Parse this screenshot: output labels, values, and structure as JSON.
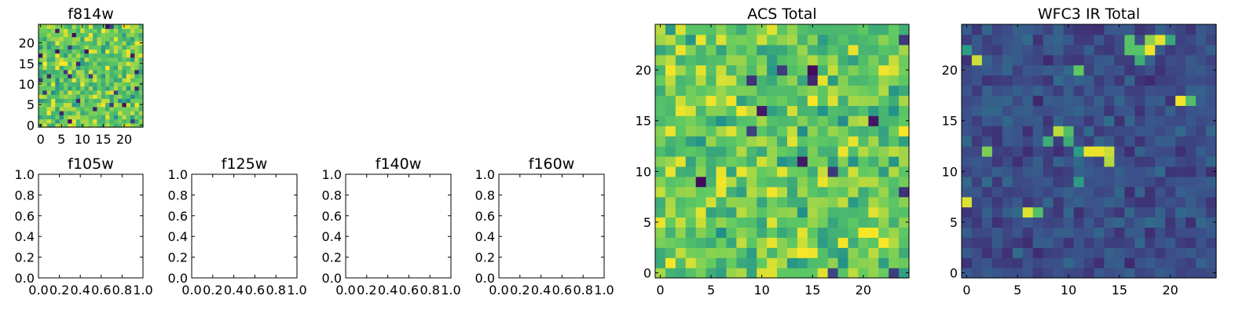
{
  "figure": {
    "background": "#ffffff",
    "colormap": "viridis",
    "colormap_stops": [
      "#440154",
      "#3b528b",
      "#21918c",
      "#5ec962",
      "#fde725"
    ]
  },
  "chart_data": [
    {
      "id": "f814w",
      "type": "heatmap",
      "title": "f814w",
      "xlabel": "",
      "ylabel": "",
      "grid_size": 25,
      "xlim": [
        -0.5,
        24.5
      ],
      "ylim": [
        -0.5,
        24.5
      ],
      "xticks": [
        0,
        5,
        10,
        15,
        20
      ],
      "yticks": [
        0,
        5,
        10,
        15,
        20
      ],
      "value_range": [
        0,
        1
      ],
      "grid": false,
      "values_note": "random noise field, mostly green-yellow with scattered dark pixels",
      "seed": 814,
      "mean_level": 0.75,
      "spread": 0.18,
      "outlier_rate": 0.06
    },
    {
      "id": "f105w",
      "type": "empty",
      "title": "f105w",
      "xlabel": "",
      "ylabel": "",
      "xlim": [
        0,
        1
      ],
      "ylim": [
        0,
        1
      ],
      "xticks": [
        "0.0",
        "0.2",
        "0.4",
        "0.6",
        "0.8",
        "1.0"
      ],
      "yticks": [
        "0.0",
        "0.2",
        "0.4",
        "0.6",
        "0.8",
        "1.0"
      ],
      "grid": false
    },
    {
      "id": "f125w",
      "type": "empty",
      "title": "f125w",
      "xlabel": "",
      "ylabel": "",
      "xlim": [
        0,
        1
      ],
      "ylim": [
        0,
        1
      ],
      "xticks": [
        "0.0",
        "0.2",
        "0.4",
        "0.6",
        "0.8",
        "1.0"
      ],
      "yticks": [
        "0.0",
        "0.2",
        "0.4",
        "0.6",
        "0.8",
        "1.0"
      ],
      "grid": false
    },
    {
      "id": "f140w",
      "type": "empty",
      "title": "f140w",
      "xlabel": "",
      "ylabel": "",
      "xlim": [
        0,
        1
      ],
      "ylim": [
        0,
        1
      ],
      "xticks": [
        "0.0",
        "0.2",
        "0.4",
        "0.6",
        "0.8",
        "1.0"
      ],
      "yticks": [
        "0.0",
        "0.2",
        "0.4",
        "0.6",
        "0.8",
        "1.0"
      ],
      "grid": false
    },
    {
      "id": "f160w",
      "type": "empty",
      "title": "f160w",
      "xlabel": "",
      "ylabel": "",
      "xlim": [
        0,
        1
      ],
      "ylim": [
        0,
        1
      ],
      "xticks": [
        "0.0",
        "0.2",
        "0.4",
        "0.6",
        "0.8",
        "1.0"
      ],
      "yticks": [
        "0.0",
        "0.2",
        "0.4",
        "0.6",
        "0.8",
        "1.0"
      ],
      "grid": false
    },
    {
      "id": "acs_total",
      "type": "heatmap",
      "title": "ACS Total",
      "xlabel": "",
      "ylabel": "",
      "grid_size": 25,
      "xlim": [
        -0.5,
        24.5
      ],
      "ylim": [
        -0.5,
        24.5
      ],
      "xticks": [
        0,
        5,
        10,
        15,
        20
      ],
      "yticks": [
        0,
        5,
        10,
        15,
        20
      ],
      "value_range": [
        0,
        1
      ],
      "grid": false,
      "values_note": "random noise field, mostly green-yellow with a few dark pixels",
      "seed": 1701,
      "mean_level": 0.74,
      "spread": 0.17,
      "outlier_rate": 0.035
    },
    {
      "id": "wfc3_ir_total",
      "type": "heatmap",
      "title": "WFC3 IR Total",
      "xlabel": "",
      "ylabel": "",
      "grid_size": 25,
      "xlim": [
        -0.5,
        24.5
      ],
      "ylim": [
        -0.5,
        24.5
      ],
      "xticks": [
        0,
        5,
        10,
        15,
        20
      ],
      "yticks": [
        0,
        5,
        10,
        15,
        20
      ],
      "value_range": [
        0,
        1
      ],
      "grid": false,
      "values_note": "mostly dark blue/purple background with a few bright sources",
      "seed": 3302,
      "mean_level": 0.24,
      "spread": 0.08,
      "outlier_rate": 0.0,
      "bright_pixels": [
        {
          "x": 0,
          "y": 7,
          "value": 0.95
        },
        {
          "x": 1,
          "y": 21,
          "value": 0.92
        },
        {
          "x": 6,
          "y": 6,
          "value": 0.95
        },
        {
          "x": 7,
          "y": 6,
          "value": 0.7
        },
        {
          "x": 2,
          "y": 12,
          "value": 0.8
        },
        {
          "x": 8,
          "y": 13,
          "value": 0.62
        },
        {
          "x": 9,
          "y": 14,
          "value": 0.9
        },
        {
          "x": 10,
          "y": 14,
          "value": 0.7
        },
        {
          "x": 10,
          "y": 13,
          "value": 0.62
        },
        {
          "x": 12,
          "y": 12,
          "value": 0.97
        },
        {
          "x": 13,
          "y": 12,
          "value": 0.97
        },
        {
          "x": 14,
          "y": 12,
          "value": 0.92
        },
        {
          "x": 14,
          "y": 11,
          "value": 0.88
        },
        {
          "x": 11,
          "y": 12,
          "value": 0.55
        },
        {
          "x": 11,
          "y": 9,
          "value": 0.55
        },
        {
          "x": 11,
          "y": 20,
          "value": 0.75
        },
        {
          "x": 17,
          "y": 22,
          "value": 0.72
        },
        {
          "x": 16,
          "y": 22,
          "value": 0.72
        },
        {
          "x": 16,
          "y": 23,
          "value": 0.72
        },
        {
          "x": 17,
          "y": 21,
          "value": 0.62
        },
        {
          "x": 18,
          "y": 23,
          "value": 0.82
        },
        {
          "x": 18,
          "y": 22,
          "value": 0.98
        },
        {
          "x": 19,
          "y": 23,
          "value": 0.96
        },
        {
          "x": 20,
          "y": 23,
          "value": 0.6
        },
        {
          "x": 21,
          "y": 17,
          "value": 0.98
        },
        {
          "x": 22,
          "y": 17,
          "value": 0.7
        },
        {
          "x": 0,
          "y": 22,
          "value": 0.55
        }
      ]
    }
  ]
}
